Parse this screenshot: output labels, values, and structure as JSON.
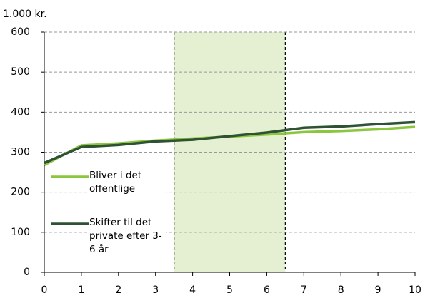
{
  "chart_data": {
    "type": "line",
    "y_unit_label": "1.000 kr.",
    "x": [
      0,
      1,
      2,
      3,
      4,
      5,
      6,
      7,
      8,
      9,
      10
    ],
    "series": [
      {
        "name": "Bliver i det offentlige",
        "color": "#8cc63f",
        "values": [
          268,
          317,
          322,
          329,
          334,
          339,
          344,
          350,
          353,
          357,
          363
        ]
      },
      {
        "name": "Skifter til det private efter 3-6 år",
        "color": "#2e5233",
        "values": [
          273,
          313,
          318,
          327,
          331,
          340,
          349,
          361,
          364,
          370,
          375
        ]
      }
    ],
    "xlim": [
      0,
      10
    ],
    "xticks": [
      0,
      1,
      2,
      3,
      4,
      5,
      6,
      7,
      8,
      9,
      10
    ],
    "ylim": [
      0,
      600
    ],
    "yticks": [
      0,
      100,
      200,
      300,
      400,
      500,
      600
    ],
    "grid": true,
    "shaded_region": [
      3.5,
      6.5
    ],
    "shaded_color": "#e5f0d3",
    "legend": "left"
  }
}
